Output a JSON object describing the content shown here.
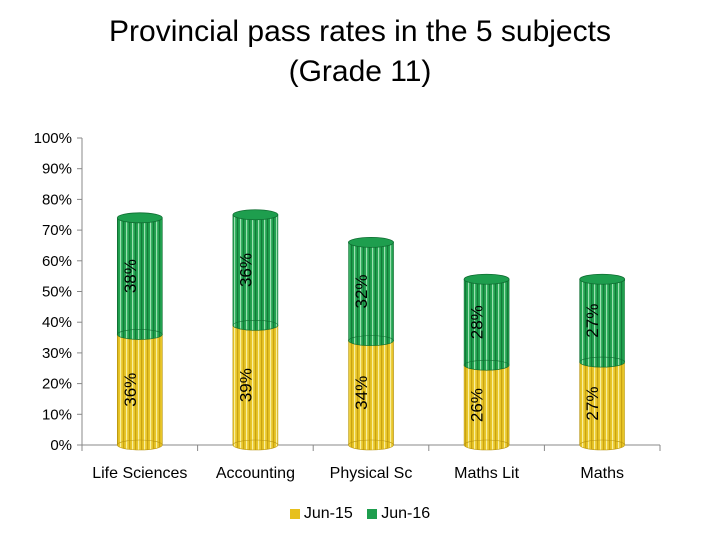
{
  "chart_data": {
    "type": "bar",
    "stacked": true,
    "title_lines": [
      "Provincial pass rates in the 5 subjects",
      "(Grade 11)"
    ],
    "categories": [
      "Life Sciences",
      "Accounting",
      "Physical Sc",
      "Maths Lit",
      "Maths"
    ],
    "series": [
      {
        "name": "Jun-15",
        "values": [
          36,
          39,
          34,
          26,
          27
        ],
        "labels": [
          "36%",
          "39%",
          "34%",
          "26%",
          "27%"
        ],
        "color": "#E7C01C"
      },
      {
        "name": "Jun-16",
        "values": [
          38,
          36,
          32,
          28,
          27
        ],
        "labels": [
          "38%",
          "36%",
          "32%",
          "28%",
          "27%"
        ],
        "color": "#1E9E4E"
      }
    ],
    "yticks": [
      "0%",
      "10%",
      "20%",
      "30%",
      "40%",
      "50%",
      "60%",
      "70%",
      "80%",
      "90%",
      "100%"
    ],
    "ylim": [
      0,
      100
    ],
    "grid": false,
    "legend_position": "bottom"
  }
}
